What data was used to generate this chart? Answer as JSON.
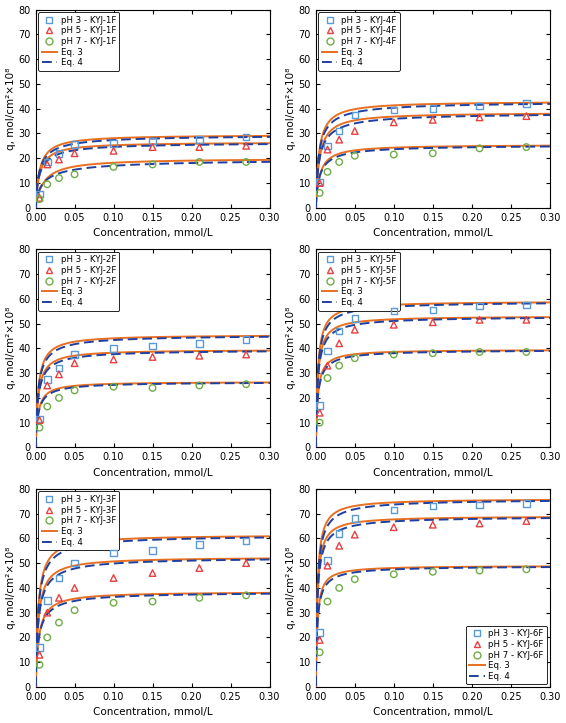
{
  "panels": [
    {
      "title": "KYJ-1F",
      "data_pH3": [
        0.005,
        0.015,
        0.03,
        0.05,
        0.1,
        0.15,
        0.21,
        0.27
      ],
      "q_pH3": [
        5.5,
        18.5,
        22.0,
        25.5,
        26.0,
        27.0,
        27.5,
        28.5
      ],
      "data_pH5": [
        0.005,
        0.015,
        0.03,
        0.05,
        0.1,
        0.15,
        0.21,
        0.27
      ],
      "q_pH5": [
        4.0,
        17.5,
        19.5,
        22.0,
        23.0,
        24.5,
        24.5,
        25.0
      ],
      "data_pH7": [
        0.005,
        0.015,
        0.03,
        0.05,
        0.1,
        0.15,
        0.21,
        0.27
      ],
      "q_pH7": [
        3.5,
        9.5,
        12.0,
        13.5,
        16.5,
        17.5,
        18.5,
        18.5
      ],
      "lang_pH3": [
        29.5,
        200.0
      ],
      "lang_pH5": [
        26.5,
        200.0
      ],
      "lang_pH7": [
        20.0,
        100.0
      ],
      "lf_pH3": [
        29.5,
        200.0,
        0.85
      ],
      "lf_pH5": [
        26.5,
        200.0,
        0.85
      ],
      "lf_pH7": [
        20.0,
        100.0,
        0.75
      ]
    },
    {
      "title": "KYJ-4F",
      "data_pH3": [
        0.005,
        0.015,
        0.03,
        0.05,
        0.1,
        0.15,
        0.21,
        0.27
      ],
      "q_pH3": [
        10.5,
        25.0,
        31.0,
        37.5,
        39.5,
        40.0,
        41.0,
        42.0
      ],
      "data_pH5": [
        0.005,
        0.015,
        0.03,
        0.05,
        0.1,
        0.15,
        0.21,
        0.27
      ],
      "q_pH5": [
        10.0,
        23.5,
        27.5,
        31.0,
        34.5,
        35.5,
        36.5,
        37.0
      ],
      "data_pH7": [
        0.005,
        0.015,
        0.03,
        0.05,
        0.1,
        0.15,
        0.21,
        0.27
      ],
      "q_pH7": [
        6.0,
        14.5,
        18.5,
        21.0,
        21.5,
        22.0,
        24.0,
        24.5
      ],
      "lang_pH3": [
        43.0,
        250.0
      ],
      "lang_pH5": [
        38.5,
        220.0
      ],
      "lang_pH7": [
        25.5,
        200.0
      ],
      "lf_pH3": [
        43.0,
        250.0,
        0.85
      ],
      "lf_pH5": [
        38.5,
        220.0,
        0.85
      ],
      "lf_pH7": [
        25.5,
        200.0,
        0.85
      ]
    },
    {
      "title": "KYJ-2F",
      "data_pH3": [
        0.005,
        0.015,
        0.03,
        0.05,
        0.1,
        0.15,
        0.21,
        0.27
      ],
      "q_pH3": [
        11.5,
        27.5,
        32.0,
        37.5,
        40.0,
        41.0,
        42.0,
        43.5
      ],
      "data_pH5": [
        0.005,
        0.015,
        0.03,
        0.05,
        0.1,
        0.15,
        0.21,
        0.27
      ],
      "q_pH5": [
        11.0,
        25.0,
        29.5,
        34.0,
        35.5,
        36.5,
        37.0,
        37.5
      ],
      "data_pH7": [
        0.005,
        0.015,
        0.03,
        0.05,
        0.1,
        0.15,
        0.21,
        0.27
      ],
      "q_pH7": [
        8.0,
        16.5,
        20.0,
        23.0,
        24.5,
        24.0,
        25.0,
        25.5
      ],
      "lang_pH3": [
        45.5,
        300.0
      ],
      "lang_pH5": [
        39.5,
        300.0
      ],
      "lang_pH7": [
        26.5,
        300.0
      ],
      "lf_pH3": [
        45.5,
        300.0,
        0.88
      ],
      "lf_pH5": [
        39.5,
        300.0,
        0.88
      ],
      "lf_pH7": [
        26.5,
        300.0,
        0.88
      ]
    },
    {
      "title": "KYJ-5F",
      "data_pH3": [
        0.005,
        0.015,
        0.03,
        0.05,
        0.1,
        0.15,
        0.21,
        0.27
      ],
      "q_pH3": [
        17.0,
        39.0,
        47.0,
        52.0,
        55.0,
        55.5,
        57.0,
        57.5
      ],
      "data_pH5": [
        0.005,
        0.015,
        0.03,
        0.05,
        0.1,
        0.15,
        0.21,
        0.27
      ],
      "q_pH5": [
        14.0,
        33.0,
        42.0,
        47.5,
        49.5,
        50.5,
        51.5,
        51.5
      ],
      "data_pH7": [
        0.005,
        0.015,
        0.03,
        0.05,
        0.1,
        0.15,
        0.21,
        0.27
      ],
      "q_pH7": [
        10.0,
        28.0,
        33.0,
        36.0,
        37.5,
        38.0,
        38.5,
        38.5
      ],
      "lang_pH3": [
        59.0,
        400.0
      ],
      "lang_pH5": [
        53.0,
        400.0
      ],
      "lang_pH7": [
        39.5,
        400.0
      ],
      "lf_pH3": [
        59.0,
        400.0,
        0.88
      ],
      "lf_pH5": [
        53.0,
        400.0,
        0.88
      ],
      "lf_pH7": [
        39.5,
        400.0,
        0.88
      ]
    },
    {
      "title": "KYJ-3F",
      "data_pH3": [
        0.005,
        0.015,
        0.03,
        0.05,
        0.1,
        0.15,
        0.21,
        0.27
      ],
      "q_pH3": [
        16.0,
        35.0,
        44.0,
        50.0,
        54.0,
        55.0,
        57.5,
        59.0
      ],
      "data_pH5": [
        0.005,
        0.015,
        0.03,
        0.05,
        0.1,
        0.15,
        0.21,
        0.27
      ],
      "q_pH5": [
        13.0,
        30.0,
        36.0,
        40.0,
        44.0,
        46.0,
        48.0,
        50.0
      ],
      "data_pH7": [
        0.005,
        0.015,
        0.03,
        0.05,
        0.1,
        0.15,
        0.21,
        0.27
      ],
      "q_pH7": [
        9.0,
        20.0,
        26.0,
        31.0,
        34.0,
        34.5,
        36.0,
        37.0
      ],
      "lang_pH3": [
        61.5,
        300.0
      ],
      "lang_pH5": [
        52.5,
        280.0
      ],
      "lang_pH7": [
        38.5,
        250.0
      ],
      "lf_pH3": [
        61.5,
        300.0,
        0.88
      ],
      "lf_pH5": [
        52.5,
        280.0,
        0.88
      ],
      "lf_pH7": [
        38.5,
        250.0,
        0.88
      ]
    },
    {
      "title": "KYJ-6F",
      "data_pH3": [
        0.005,
        0.015,
        0.03,
        0.05,
        0.1,
        0.15,
        0.21,
        0.27
      ],
      "q_pH3": [
        22.0,
        51.0,
        62.0,
        68.0,
        71.5,
        73.0,
        73.5,
        74.0
      ],
      "data_pH5": [
        0.005,
        0.015,
        0.03,
        0.05,
        0.1,
        0.15,
        0.21,
        0.27
      ],
      "q_pH5": [
        19.0,
        49.0,
        57.0,
        61.5,
        64.5,
        65.5,
        66.0,
        67.0
      ],
      "data_pH7": [
        0.005,
        0.015,
        0.03,
        0.05,
        0.1,
        0.15,
        0.21,
        0.27
      ],
      "q_pH7": [
        14.0,
        34.5,
        40.0,
        43.5,
        45.5,
        46.5,
        47.0,
        47.5
      ],
      "lang_pH3": [
        76.0,
        500.0
      ],
      "lang_pH5": [
        69.0,
        500.0
      ],
      "lang_pH7": [
        49.0,
        500.0
      ],
      "lf_pH3": [
        76.0,
        500.0,
        0.88
      ],
      "lf_pH5": [
        69.0,
        500.0,
        0.88
      ],
      "lf_pH7": [
        49.0,
        500.0,
        0.88
      ]
    }
  ],
  "color_pH3": "#5b9bd5",
  "color_pH5": "#e84040",
  "color_pH7": "#70ad47",
  "color_eq3": "#e87020",
  "color_eq4": "#2040a0",
  "ylim": [
    0,
    80
  ],
  "xlim": [
    0.0,
    0.3
  ],
  "xlabel": "Concentration, mmol/L",
  "ylabel": "q, mol/cm²×10⁸",
  "yticks": [
    0,
    10,
    20,
    30,
    40,
    50,
    60,
    70,
    80
  ],
  "xticks": [
    0.0,
    0.05,
    0.1,
    0.15,
    0.2,
    0.25,
    0.3
  ],
  "xticklabels": [
    "0.00",
    "0.05",
    "0.10",
    "0.15",
    "0.20",
    "0.25",
    "0.30"
  ]
}
